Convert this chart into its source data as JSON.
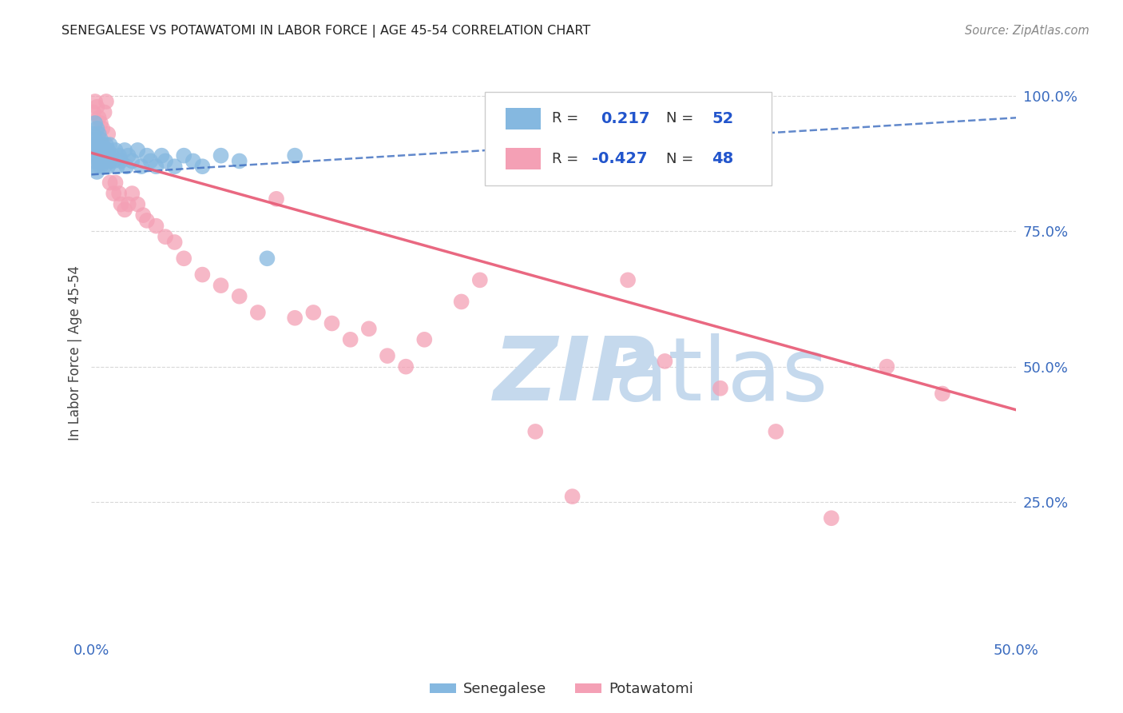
{
  "title": "SENEGALESE VS POTAWATOMI IN LABOR FORCE | AGE 45-54 CORRELATION CHART",
  "source": "Source: ZipAtlas.com",
  "ylabel": "In Labor Force | Age 45-54",
  "xlim": [
    0.0,
    0.5
  ],
  "ylim": [
    0.0,
    1.05
  ],
  "xtick_positions": [
    0.0,
    0.1,
    0.2,
    0.3,
    0.4,
    0.5
  ],
  "xticklabels": [
    "0.0%",
    "",
    "",
    "",
    "",
    "50.0%"
  ],
  "ytick_positions": [
    0.25,
    0.5,
    0.75,
    1.0
  ],
  "ytick_labels": [
    "25.0%",
    "50.0%",
    "75.0%",
    "100.0%"
  ],
  "background_color": "#ffffff",
  "grid_color": "#d8d8d8",
  "senegalese_color": "#85b8e0",
  "potawatomi_color": "#f4a0b5",
  "senegalese_line_color": "#3a6bbf",
  "potawatomi_line_color": "#e8607a",
  "legend_r_color": "#2255cc",
  "watermark_zip_color": "#c5d9ed",
  "watermark_atlas_color": "#c5d9ed",
  "r_senegalese": "0.217",
  "n_senegalese": "52",
  "r_potawatomi": "-0.427",
  "n_potawatomi": "48",
  "senegalese_points_x": [
    0.001,
    0.001,
    0.001,
    0.002,
    0.002,
    0.002,
    0.002,
    0.003,
    0.003,
    0.003,
    0.003,
    0.004,
    0.004,
    0.004,
    0.005,
    0.005,
    0.005,
    0.006,
    0.006,
    0.007,
    0.007,
    0.008,
    0.008,
    0.009,
    0.009,
    0.01,
    0.01,
    0.011,
    0.012,
    0.013,
    0.014,
    0.015,
    0.016,
    0.018,
    0.019,
    0.02,
    0.022,
    0.025,
    0.027,
    0.03,
    0.032,
    0.035,
    0.038,
    0.04,
    0.045,
    0.05,
    0.055,
    0.06,
    0.07,
    0.08,
    0.095,
    0.11
  ],
  "senegalese_points_y": [
    0.88,
    0.91,
    0.93,
    0.87,
    0.9,
    0.92,
    0.95,
    0.86,
    0.89,
    0.91,
    0.94,
    0.88,
    0.91,
    0.93,
    0.87,
    0.9,
    0.92,
    0.88,
    0.91,
    0.87,
    0.9,
    0.88,
    0.91,
    0.87,
    0.9,
    0.88,
    0.91,
    0.89,
    0.88,
    0.9,
    0.87,
    0.89,
    0.88,
    0.9,
    0.87,
    0.89,
    0.88,
    0.9,
    0.87,
    0.89,
    0.88,
    0.87,
    0.89,
    0.88,
    0.87,
    0.89,
    0.88,
    0.87,
    0.89,
    0.88,
    0.7,
    0.89
  ],
  "potawatomi_points_x": [
    0.001,
    0.002,
    0.003,
    0.004,
    0.005,
    0.006,
    0.007,
    0.008,
    0.009,
    0.01,
    0.012,
    0.013,
    0.015,
    0.016,
    0.018,
    0.02,
    0.022,
    0.025,
    0.028,
    0.03,
    0.035,
    0.04,
    0.045,
    0.05,
    0.06,
    0.07,
    0.08,
    0.09,
    0.1,
    0.11,
    0.12,
    0.13,
    0.14,
    0.15,
    0.16,
    0.17,
    0.18,
    0.2,
    0.21,
    0.24,
    0.26,
    0.29,
    0.31,
    0.34,
    0.37,
    0.4,
    0.43,
    0.46
  ],
  "potawatomi_points_y": [
    0.97,
    0.99,
    0.98,
    0.96,
    0.95,
    0.94,
    0.97,
    0.99,
    0.93,
    0.84,
    0.82,
    0.84,
    0.82,
    0.8,
    0.79,
    0.8,
    0.82,
    0.8,
    0.78,
    0.77,
    0.76,
    0.74,
    0.73,
    0.7,
    0.67,
    0.65,
    0.63,
    0.6,
    0.81,
    0.59,
    0.6,
    0.58,
    0.55,
    0.57,
    0.52,
    0.5,
    0.55,
    0.62,
    0.66,
    0.38,
    0.26,
    0.66,
    0.51,
    0.46,
    0.38,
    0.22,
    0.5,
    0.45
  ]
}
